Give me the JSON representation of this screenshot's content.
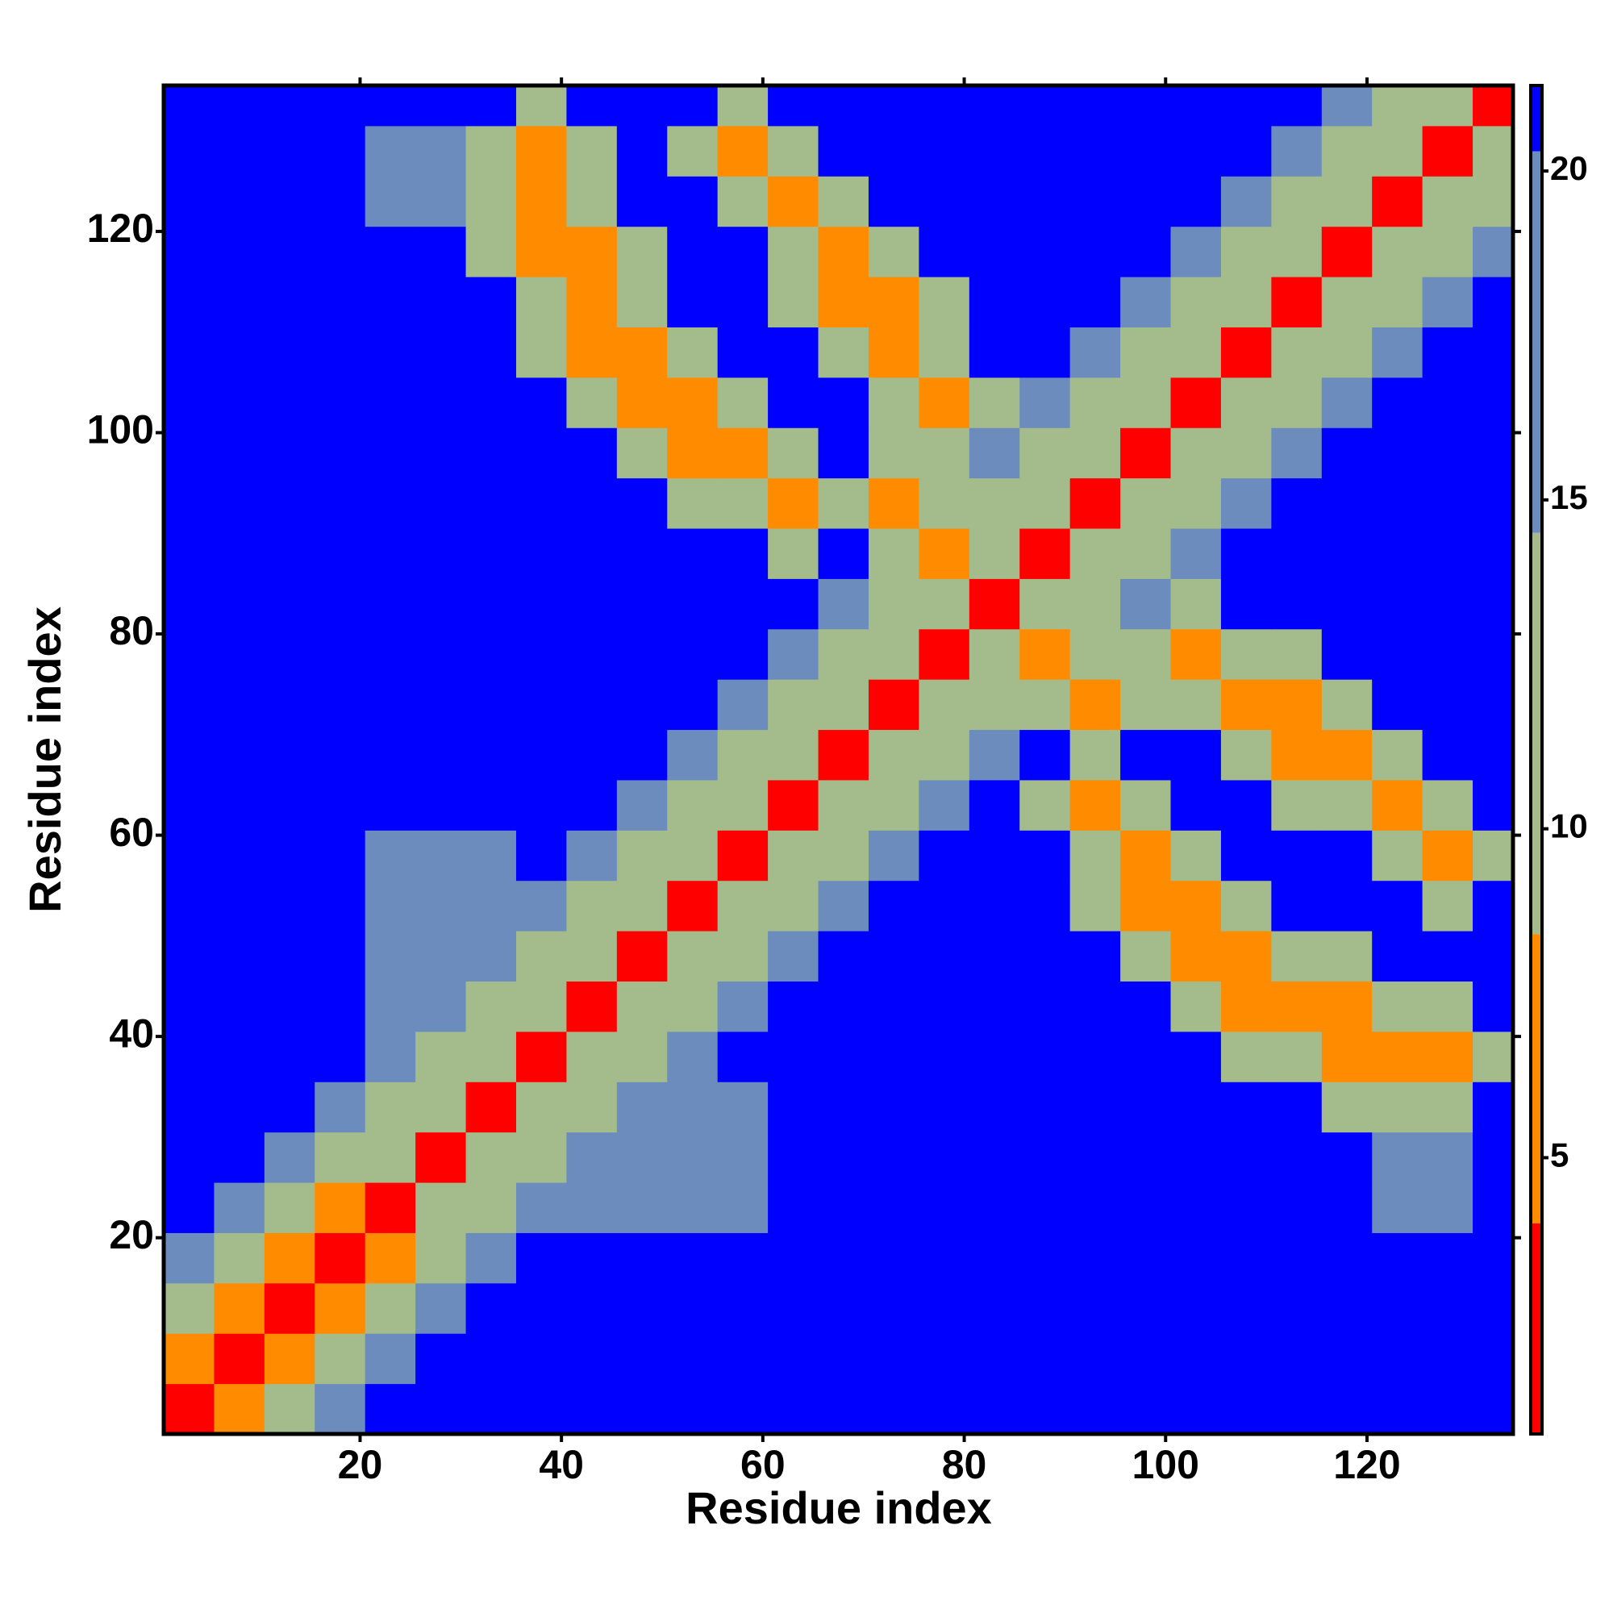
{
  "chart_data": {
    "type": "heatmap",
    "xlabel": "Residue index",
    "ylabel": "Residue index",
    "xbins": [
      0.5,
      5.5,
      10.5,
      15.5,
      20.5,
      25.5,
      30.5,
      35.5,
      40.5,
      45.5,
      50.5,
      55.5,
      60.5,
      65.5,
      70.5,
      75.5,
      80.5,
      85.5,
      90.5,
      95.5,
      100.5,
      105.5,
      110.5,
      115.5,
      120.5,
      125.5,
      130.5,
      134.5
    ],
    "ybins": [
      0.5,
      5.5,
      10.5,
      15.5,
      20.5,
      25.5,
      30.5,
      35.5,
      40.5,
      45.5,
      50.5,
      55.5,
      60.5,
      65.5,
      70.5,
      75.5,
      80.5,
      85.5,
      90.5,
      95.5,
      100.5,
      105.5,
      110.5,
      115.5,
      120.5,
      125.5,
      130.5,
      134.5
    ],
    "xlim": [
      0.5,
      134.5
    ],
    "ylim": [
      0.5,
      134.5
    ],
    "xticks": [
      20,
      40,
      60,
      80,
      100,
      120
    ],
    "yticks": [
      20,
      40,
      60,
      80,
      100,
      120
    ],
    "values": [
      [
        2,
        6,
        11,
        17,
        22,
        22,
        22,
        22,
        22,
        22,
        22,
        22,
        22,
        22,
        22,
        22,
        22,
        22,
        22,
        22,
        22,
        22,
        22,
        22,
        22,
        22,
        22
      ],
      [
        6,
        2,
        6,
        11,
        17,
        22,
        22,
        22,
        22,
        22,
        22,
        22,
        22,
        22,
        22,
        22,
        22,
        22,
        22,
        22,
        22,
        22,
        22,
        22,
        22,
        22,
        22
      ],
      [
        11,
        6,
        2,
        6,
        11,
        17,
        22,
        22,
        22,
        22,
        22,
        22,
        22,
        22,
        22,
        22,
        22,
        22,
        22,
        22,
        22,
        22,
        22,
        22,
        22,
        22,
        22
      ],
      [
        17,
        11,
        6,
        2,
        6,
        13,
        17,
        22,
        22,
        22,
        22,
        22,
        22,
        22,
        22,
        22,
        22,
        22,
        22,
        22,
        22,
        22,
        22,
        22,
        22,
        22,
        22
      ],
      [
        22,
        17,
        11,
        6,
        2,
        10,
        13,
        17,
        16,
        16,
        16,
        16,
        22,
        22,
        22,
        22,
        22,
        22,
        22,
        22,
        22,
        22,
        22,
        22,
        17,
        17,
        22
      ],
      [
        22,
        22,
        17,
        13,
        10,
        2,
        10,
        13,
        16,
        16,
        16,
        16,
        22,
        22,
        22,
        22,
        22,
        22,
        22,
        22,
        22,
        22,
        22,
        22,
        17,
        17,
        22
      ],
      [
        22,
        22,
        22,
        17,
        13,
        10,
        2,
        10,
        13,
        16,
        16,
        16,
        22,
        22,
        22,
        22,
        22,
        22,
        22,
        22,
        22,
        22,
        22,
        12,
        12,
        12,
        22
      ],
      [
        22,
        22,
        22,
        22,
        17,
        13,
        10,
        2,
        10,
        13,
        17,
        22,
        22,
        22,
        22,
        22,
        22,
        22,
        22,
        22,
        22,
        12,
        12,
        6,
        6,
        6,
        12
      ],
      [
        22,
        22,
        22,
        22,
        16,
        16,
        13,
        10,
        2,
        10,
        13,
        17,
        22,
        22,
        22,
        22,
        22,
        22,
        22,
        22,
        12,
        6,
        6,
        6,
        12,
        12,
        22
      ],
      [
        22,
        22,
        22,
        22,
        16,
        16,
        16,
        13,
        10,
        2,
        10,
        13,
        17,
        22,
        22,
        22,
        22,
        22,
        22,
        12,
        6,
        6,
        12,
        12,
        22,
        22,
        22
      ],
      [
        22,
        22,
        22,
        22,
        16,
        16,
        16,
        17,
        13,
        10,
        2,
        10,
        13,
        17,
        22,
        22,
        22,
        22,
        12,
        6,
        6,
        12,
        22,
        22,
        22,
        12,
        22
      ],
      [
        22,
        22,
        22,
        22,
        16,
        16,
        16,
        22,
        17,
        13,
        10,
        2,
        10,
        13,
        17,
        22,
        22,
        22,
        12,
        6,
        12,
        22,
        22,
        22,
        12,
        6,
        12
      ],
      [
        22,
        22,
        22,
        22,
        22,
        22,
        22,
        22,
        22,
        17,
        13,
        10,
        2,
        10,
        13,
        17,
        22,
        12,
        6,
        12,
        22,
        22,
        12,
        12,
        6,
        12,
        22
      ],
      [
        22,
        22,
        22,
        22,
        22,
        22,
        22,
        22,
        22,
        22,
        17,
        13,
        10,
        2,
        10,
        13,
        17,
        22,
        12,
        22,
        22,
        12,
        6,
        6,
        12,
        22,
        22
      ],
      [
        22,
        22,
        22,
        22,
        22,
        22,
        22,
        22,
        22,
        22,
        22,
        17,
        13,
        10,
        2,
        10,
        13,
        12,
        6,
        12,
        12,
        6,
        6,
        12,
        22,
        22,
        22
      ],
      [
        22,
        22,
        22,
        22,
        22,
        22,
        22,
        22,
        22,
        22,
        22,
        22,
        17,
        13,
        10,
        2,
        10,
        6,
        12,
        12,
        6,
        12,
        12,
        22,
        22,
        22,
        22
      ],
      [
        22,
        22,
        22,
        22,
        22,
        22,
        22,
        22,
        22,
        22,
        22,
        22,
        22,
        17,
        13,
        10,
        2,
        10,
        13,
        17,
        12,
        22,
        22,
        22,
        22,
        22,
        22
      ],
      [
        22,
        22,
        22,
        22,
        22,
        22,
        22,
        22,
        22,
        22,
        22,
        22,
        12,
        22,
        12,
        6,
        10,
        2,
        10,
        13,
        17,
        22,
        22,
        22,
        22,
        22,
        22
      ],
      [
        22,
        22,
        22,
        22,
        22,
        22,
        22,
        22,
        22,
        22,
        12,
        12,
        6,
        12,
        6,
        12,
        13,
        10,
        2,
        10,
        13,
        17,
        22,
        22,
        22,
        22,
        22
      ],
      [
        22,
        22,
        22,
        22,
        22,
        22,
        22,
        22,
        22,
        12,
        6,
        6,
        12,
        22,
        12,
        12,
        17,
        13,
        10,
        2,
        10,
        13,
        17,
        22,
        22,
        22,
        22
      ],
      [
        22,
        22,
        22,
        22,
        22,
        22,
        22,
        22,
        12,
        6,
        6,
        12,
        22,
        22,
        12,
        6,
        12,
        17,
        13,
        10,
        2,
        10,
        13,
        17,
        22,
        22,
        22
      ],
      [
        22,
        22,
        22,
        22,
        22,
        22,
        22,
        12,
        6,
        6,
        12,
        22,
        22,
        12,
        6,
        12,
        22,
        22,
        17,
        13,
        10,
        2,
        10,
        13,
        17,
        22,
        22
      ],
      [
        22,
        22,
        22,
        22,
        22,
        22,
        22,
        12,
        6,
        12,
        22,
        22,
        12,
        6,
        6,
        12,
        22,
        22,
        22,
        17,
        13,
        10,
        2,
        10,
        13,
        17,
        22
      ],
      [
        22,
        22,
        22,
        22,
        22,
        22,
        12,
        6,
        6,
        12,
        22,
        22,
        12,
        6,
        12,
        22,
        22,
        22,
        22,
        22,
        17,
        13,
        10,
        2,
        10,
        13,
        17
      ],
      [
        22,
        22,
        22,
        22,
        17,
        17,
        12,
        6,
        12,
        22,
        22,
        12,
        6,
        12,
        22,
        22,
        22,
        22,
        22,
        22,
        22,
        17,
        13,
        10,
        2,
        10,
        13
      ],
      [
        22,
        22,
        22,
        22,
        17,
        17,
        12,
        6,
        12,
        22,
        12,
        6,
        12,
        22,
        22,
        22,
        22,
        22,
        22,
        22,
        22,
        22,
        17,
        13,
        10,
        2,
        10
      ],
      [
        22,
        22,
        22,
        22,
        22,
        22,
        22,
        12,
        22,
        22,
        22,
        12,
        22,
        22,
        22,
        22,
        22,
        22,
        22,
        22,
        22,
        22,
        22,
        17,
        13,
        10,
        2
      ]
    ],
    "clim": [
      0.8,
      21.3
    ],
    "cticks": [
      5,
      10,
      15,
      20
    ],
    "colorscale": [
      {
        "to": 4,
        "color": "#ff0000"
      },
      {
        "to": 8.4,
        "color": "#ff8c00"
      },
      {
        "to": 14.5,
        "color": "#a4bc8c"
      },
      {
        "to": 20.3,
        "color": "#6b8cbc"
      },
      {
        "color": "#0000ff"
      }
    ]
  }
}
